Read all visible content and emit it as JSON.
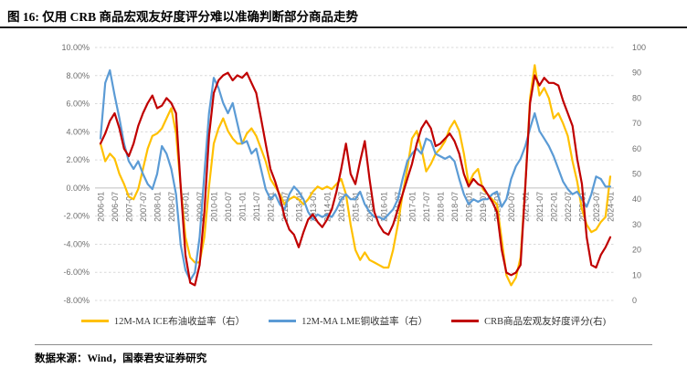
{
  "title": "图 16: 仅用 CRB 商品宏观友好度评分难以准确判断部分商品走势",
  "footer": {
    "source_text": "数据来源：Wind，国泰君安证券研究"
  },
  "colors": {
    "accent_yellow": "#FFC000",
    "accent_blue": "#5B9BD5",
    "accent_red": "#C00000",
    "gridline": "#D9D9D9",
    "zero_line": "#BFBFBF",
    "axis_text": "#6E6E6E",
    "title_rule": "#1F1F1F"
  },
  "chart_data": {
    "type": "line",
    "grid": "dashed-horizontal",
    "legend_position": "bottom",
    "left_axis_labels": [
      "10.00%",
      "8.00%",
      "6.00%",
      "4.00%",
      "2.00%",
      "0.00%",
      "-2.00%",
      "-4.00%",
      "-6.00%",
      "-8.00%"
    ],
    "left_axis_range": [
      -8,
      10
    ],
    "right_axis_labels": [
      "100",
      "90",
      "80",
      "70",
      "60",
      "50",
      "40",
      "30",
      "20",
      "10",
      "0"
    ],
    "right_axis_range": [
      0,
      100
    ],
    "x_start": "2006-01",
    "x_end": "2024-01",
    "x_step_months": 2,
    "x_tick_labels": [
      "2006-01",
      "2006-07",
      "2007-01",
      "2007-07",
      "2008-01",
      "2008-07",
      "2009-01",
      "2009-07",
      "2010-01",
      "2010-07",
      "2011-01",
      "2011-07",
      "2012-01",
      "2012-07",
      "2013-01",
      "2013-07",
      "2014-01",
      "2014-07",
      "2015-01",
      "2015-07",
      "2016-01",
      "2016-07",
      "2017-01",
      "2017-07",
      "2018-01",
      "2018-07",
      "2019-01",
      "2019-07",
      "2020-01",
      "2020-07",
      "2021-01",
      "2021-07",
      "2022-01",
      "2022-07",
      "2023-01",
      "2023-07",
      "2024-01"
    ],
    "values_axis": "right",
    "series": [
      {
        "name": "12M-MA ICE布油收益率（右）",
        "color": "#FFC000",
        "values": [
          62,
          55,
          58,
          56,
          50,
          46,
          41,
          40,
          44,
          52,
          60,
          65,
          66,
          68,
          72,
          76,
          66,
          45,
          25,
          17,
          15,
          15,
          25,
          45,
          62,
          68,
          72,
          67,
          64,
          62,
          62,
          66,
          68,
          65,
          60,
          55,
          48,
          45,
          42,
          38,
          40,
          41,
          40,
          38,
          40,
          43,
          45,
          44,
          45,
          44,
          46,
          48,
          42,
          30,
          20,
          16,
          19,
          16,
          15,
          14,
          13,
          13,
          20,
          30,
          42,
          52,
          64,
          67,
          60,
          51,
          54,
          58,
          60,
          63,
          68,
          71,
          67,
          58,
          46,
          50,
          52,
          44,
          42,
          40,
          38,
          24,
          10,
          6,
          9,
          17,
          45,
          80,
          93,
          81,
          84,
          80,
          72,
          74,
          70,
          65,
          55,
          47,
          36,
          30,
          27,
          28,
          31,
          33,
          49
        ]
      },
      {
        "name": "12M-MA LME铜收益率（右）",
        "color": "#5B9BD5",
        "values": [
          64,
          86,
          91,
          81,
          72,
          62,
          55,
          52,
          55,
          50,
          46,
          44,
          50,
          61,
          58,
          52,
          42,
          22,
          12,
          8,
          11,
          25,
          50,
          74,
          88,
          84,
          78,
          74,
          78,
          70,
          62,
          63,
          58,
          60,
          52,
          44,
          40,
          42,
          38,
          36,
          42,
          45,
          43,
          40,
          35,
          32,
          34,
          33,
          34,
          33,
          36,
          40,
          42,
          40,
          40,
          43,
          38,
          35,
          33,
          33,
          32,
          34,
          36,
          40,
          48,
          55,
          58,
          60,
          58,
          64,
          63,
          58,
          57,
          56,
          57,
          55,
          48,
          42,
          38,
          40,
          39,
          40,
          40,
          42,
          43,
          37,
          40,
          48,
          53,
          56,
          61,
          68,
          74,
          67,
          64,
          61,
          57,
          52,
          47,
          44,
          42,
          43,
          40,
          37,
          42,
          49,
          48,
          45,
          45
        ]
      },
      {
        "name": "CRB商品宏观友好度评分(右)",
        "color": "#C00000",
        "values": [
          62,
          66,
          71,
          74,
          68,
          60,
          57,
          62,
          69,
          74,
          78,
          81,
          76,
          77,
          80,
          78,
          74,
          45,
          18,
          7,
          6,
          14,
          35,
          65,
          82,
          87,
          89,
          90,
          87,
          89,
          88,
          90,
          86,
          82,
          72,
          62,
          52,
          47,
          41,
          33,
          28,
          26,
          21,
          27,
          32,
          34,
          31,
          29,
          32,
          36,
          43,
          52,
          62,
          50,
          46,
          55,
          63,
          48,
          35,
          30,
          27,
          26,
          30,
          36,
          42,
          48,
          54,
          62,
          68,
          71,
          68,
          61,
          62,
          64,
          66,
          63,
          58,
          50,
          45,
          48,
          46,
          45,
          42,
          39,
          35,
          20,
          11,
          10,
          11,
          14,
          45,
          78,
          89,
          85,
          88,
          86,
          86,
          85,
          79,
          74,
          69,
          56,
          46,
          25,
          14,
          13,
          18,
          21,
          25
        ]
      }
    ]
  }
}
